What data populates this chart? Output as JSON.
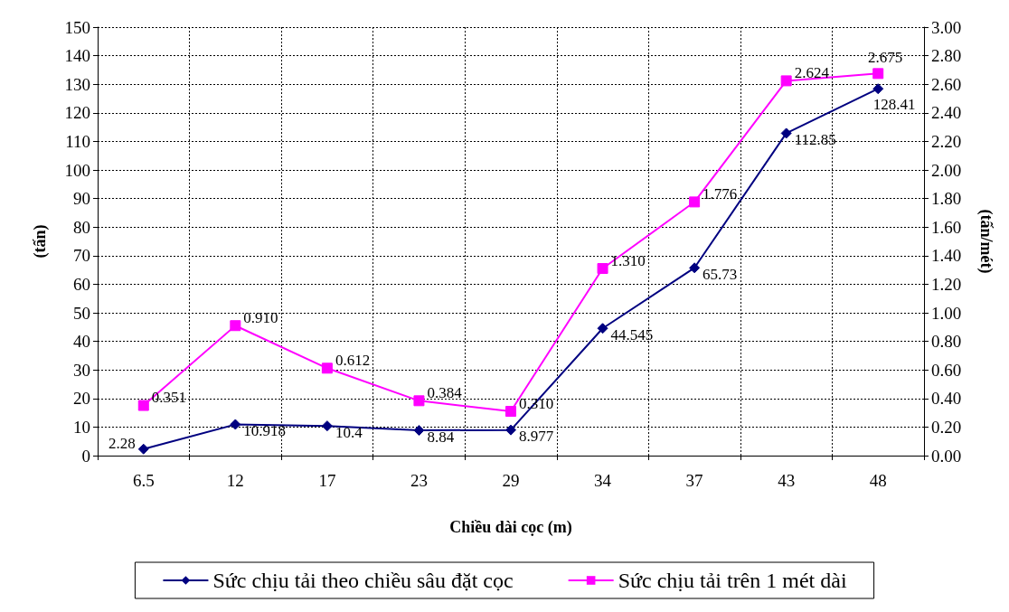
{
  "chart_data": {
    "type": "line",
    "xlabel": "Chiều dài cọc (m)",
    "ylabel": "(tấn)",
    "y2label": "(tấn/mét)",
    "categories": [
      "6.5",
      "12",
      "17",
      "23",
      "29",
      "34",
      "37",
      "43",
      "48"
    ],
    "series": [
      {
        "name": "Sức chịu tải theo chiều sâu đặt cọc",
        "color": "#000080",
        "marker": "diamond",
        "values": [
          2.28,
          10.918,
          10.4,
          8.84,
          8.977,
          44.545,
          65.73,
          112.85,
          128.41
        ],
        "value_labels": [
          "2.28",
          "10.918",
          "10.4",
          "8.84",
          "8.977",
          "44.545",
          "65.73",
          "112.85",
          "128.41"
        ]
      },
      {
        "name": "Sức chịu tải trên 1 mét dài",
        "color": "#ff00ff",
        "marker": "square",
        "axis": "y2",
        "values": [
          0.351,
          0.91,
          0.612,
          0.384,
          0.31,
          1.31,
          1.776,
          2.624,
          2.675
        ],
        "value_labels": [
          "0.351",
          "0.910",
          "0.612",
          "0.384",
          "0.310",
          "1.310",
          "1.776",
          "2.624",
          "2.675"
        ]
      }
    ],
    "ylim": [
      0,
      150
    ],
    "yticks": [
      0,
      10,
      20,
      30,
      40,
      50,
      60,
      70,
      80,
      90,
      100,
      110,
      120,
      130,
      140,
      150
    ],
    "y2lim": [
      0,
      3
    ],
    "y2ticks": [
      {
        "value": 0,
        "label": "0.00"
      },
      {
        "value": 0.2,
        "label": "0.20"
      },
      {
        "value": 0.4,
        "label": "0.40"
      },
      {
        "value": 0.6,
        "label": "0.60"
      },
      {
        "value": 0.8,
        "label": "0.80"
      },
      {
        "value": 1,
        "label": "1.00"
      },
      {
        "value": 1.2,
        "label": "1.20"
      },
      {
        "value": 1.4,
        "label": "1.40"
      },
      {
        "value": 1.6,
        "label": "1.60"
      },
      {
        "value": 1.8,
        "label": "1.80"
      },
      {
        "value": 2,
        "label": "2.00"
      },
      {
        "value": 2.2,
        "label": "2.20"
      },
      {
        "value": 2.4,
        "label": "2.40"
      },
      {
        "value": 2.6,
        "label": "2.60"
      },
      {
        "value": 2.8,
        "label": "2.80"
      },
      {
        "value": 3,
        "label": "3.00"
      }
    ],
    "grid": true,
    "legend": "bottom"
  }
}
